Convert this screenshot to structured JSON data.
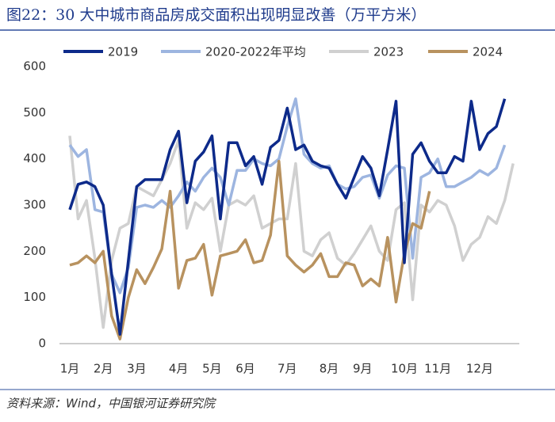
{
  "chart_data": {
    "type": "line",
    "title": "图22：30 大中城市商品房成交面积出现明显改善（万平方米）",
    "source": "资料来源：Wind，中国银河证券研究院",
    "categories": [
      "1月",
      null,
      null,
      null,
      "2月",
      null,
      null,
      null,
      "3月",
      null,
      null,
      null,
      null,
      "4月",
      null,
      null,
      null,
      "5月",
      null,
      null,
      null,
      "6月",
      null,
      null,
      null,
      null,
      "7月",
      null,
      null,
      null,
      null,
      "8月",
      null,
      null,
      null,
      "9月",
      null,
      null,
      null,
      null,
      "10月",
      null,
      null,
      null,
      "11月",
      null,
      null,
      null,
      null,
      "12月",
      null,
      null,
      null,
      null
    ],
    "ylim": [
      0,
      600
    ],
    "yticks": [
      0,
      100,
      200,
      300,
      400,
      500,
      600
    ],
    "series": [
      {
        "name": "2019",
        "color": "#0d2a8a",
        "values": [
          290,
          345,
          350,
          340,
          300,
          150,
          20,
          180,
          340,
          355,
          355,
          355,
          420,
          460,
          305,
          395,
          415,
          450,
          270,
          435,
          435,
          385,
          405,
          345,
          425,
          440,
          510,
          420,
          430,
          395,
          385,
          380,
          345,
          315,
          360,
          405,
          380,
          320,
          420,
          525,
          175,
          410,
          435,
          395,
          370,
          370,
          405,
          395,
          525,
          420,
          455,
          470,
          530,
          null
        ]
      },
      {
        "name": "2020-2022年平均",
        "color": "#9db5e0",
        "values": [
          430,
          405,
          420,
          290,
          285,
          150,
          110,
          165,
          295,
          300,
          295,
          310,
          295,
          320,
          350,
          330,
          360,
          380,
          360,
          300,
          375,
          375,
          400,
          390,
          385,
          400,
          470,
          530,
          410,
          390,
          380,
          385,
          345,
          335,
          340,
          360,
          365,
          315,
          365,
          385,
          380,
          185,
          360,
          370,
          400,
          340,
          340,
          350,
          360,
          375,
          365,
          380,
          430,
          null
        ]
      },
      {
        "name": "2023",
        "color": "#d0d0d0",
        "values": [
          450,
          270,
          310,
          185,
          35,
          180,
          250,
          260,
          340,
          330,
          320,
          355,
          390,
          440,
          250,
          305,
          290,
          315,
          200,
          300,
          310,
          300,
          320,
          250,
          260,
          270,
          270,
          390,
          200,
          190,
          225,
          240,
          185,
          170,
          195,
          225,
          255,
          200,
          180,
          290,
          305,
          95,
          300,
          285,
          310,
          300,
          255,
          180,
          215,
          230,
          275,
          260,
          310,
          390
        ]
      },
      {
        "name": "2024",
        "color": "#b8925f",
        "values": [
          170,
          175,
          190,
          175,
          200,
          60,
          10,
          100,
          160,
          130,
          165,
          205,
          330,
          120,
          180,
          185,
          215,
          105,
          190,
          195,
          200,
          225,
          175,
          180,
          235,
          395,
          190,
          170,
          155,
          170,
          195,
          145,
          145,
          175,
          170,
          125,
          140,
          125,
          230,
          90,
          195,
          260,
          250,
          330,
          null,
          null,
          null,
          null,
          null,
          null,
          null,
          null,
          null,
          null
        ]
      }
    ]
  }
}
